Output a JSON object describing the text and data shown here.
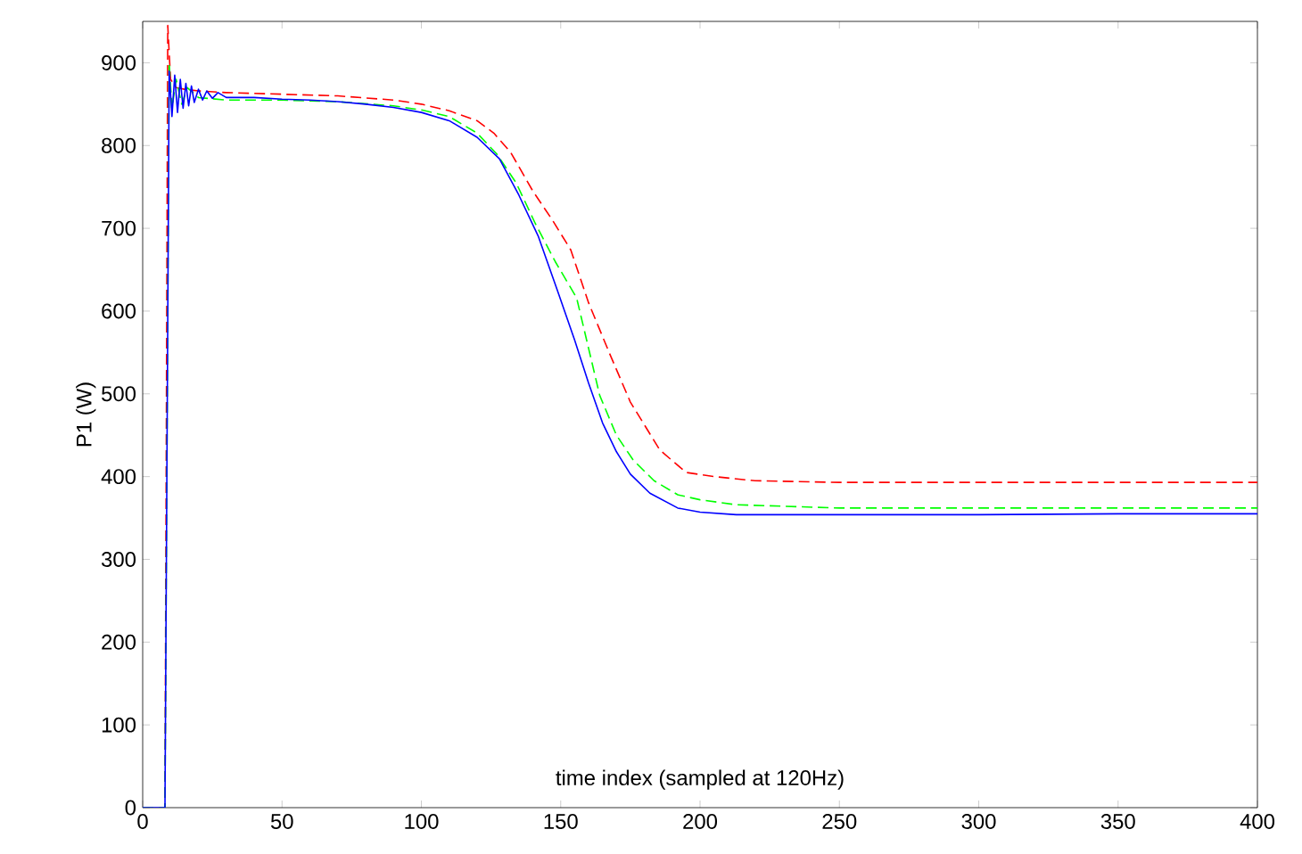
{
  "chart_data": {
    "type": "line",
    "xlabel": "time index (sampled at 120Hz)",
    "ylabel": "P1 (W)",
    "xlim": [
      0,
      400
    ],
    "ylim": [
      0,
      950
    ],
    "xticks": [
      0,
      50,
      100,
      150,
      200,
      250,
      300,
      350,
      400
    ],
    "yticks": [
      0,
      100,
      200,
      300,
      400,
      500,
      600,
      700,
      800,
      900
    ],
    "grid": false,
    "marker": "none",
    "series": [
      {
        "color": "#ff0000",
        "line_style": "dashed",
        "x": [
          0,
          8,
          9,
          10,
          12,
          15,
          20,
          30,
          50,
          70,
          90,
          100,
          110,
          120,
          126,
          132,
          140,
          147,
          153.6,
          160,
          167.5,
          175,
          185.6,
          195,
          205,
          219.7,
          250,
          300,
          350,
          400
        ],
        "values": [
          0,
          0,
          945,
          880,
          870,
          868,
          866,
          864,
          862,
          860,
          855,
          850,
          842,
          830,
          815,
          792,
          745,
          710,
          674,
          610,
          549,
          490,
          432,
          405,
          400,
          395,
          393,
          393,
          393,
          393
        ]
      },
      {
        "color": "#00ff00",
        "line_style": "dashed",
        "x": [
          0,
          8,
          9.5,
          10.5,
          12,
          14,
          16,
          20,
          30,
          50,
          70,
          90,
          100,
          110,
          120,
          127,
          134,
          141,
          148,
          155.7,
          160,
          164,
          170,
          176,
          183.5,
          192,
          200,
          213,
          250,
          300,
          350,
          400
        ],
        "values": [
          0,
          0,
          900,
          845,
          880,
          850,
          870,
          858,
          855,
          855,
          853,
          848,
          843,
          835,
          815,
          790,
          755,
          705,
          660,
          616,
          555,
          498,
          450,
          420,
          395,
          378,
          372,
          366,
          362,
          362,
          362,
          362
        ]
      },
      {
        "color": "#0000ff",
        "line_style": "solid",
        "x": [
          0,
          8,
          9.5,
          10.5,
          11.5,
          12.5,
          13.5,
          14.5,
          15.5,
          16.5,
          17.5,
          18.5,
          20,
          21.5,
          23,
          25,
          27,
          30,
          40,
          50,
          60,
          70,
          80,
          90,
          100,
          110,
          120,
          128,
          135,
          142,
          149,
          155,
          160,
          165,
          170,
          175,
          182,
          192,
          200,
          213,
          250,
          300,
          350,
          400
        ],
        "values": [
          0,
          0,
          890,
          835,
          885,
          840,
          880,
          845,
          875,
          848,
          872,
          852,
          868,
          855,
          866,
          857,
          864,
          858,
          858,
          856,
          855,
          853,
          850,
          846,
          840,
          830,
          810,
          784,
          740,
          690,
          623,
          565,
          513,
          465,
          430,
          403,
          380,
          362,
          357,
          354,
          354,
          354,
          355,
          355
        ]
      }
    ]
  }
}
